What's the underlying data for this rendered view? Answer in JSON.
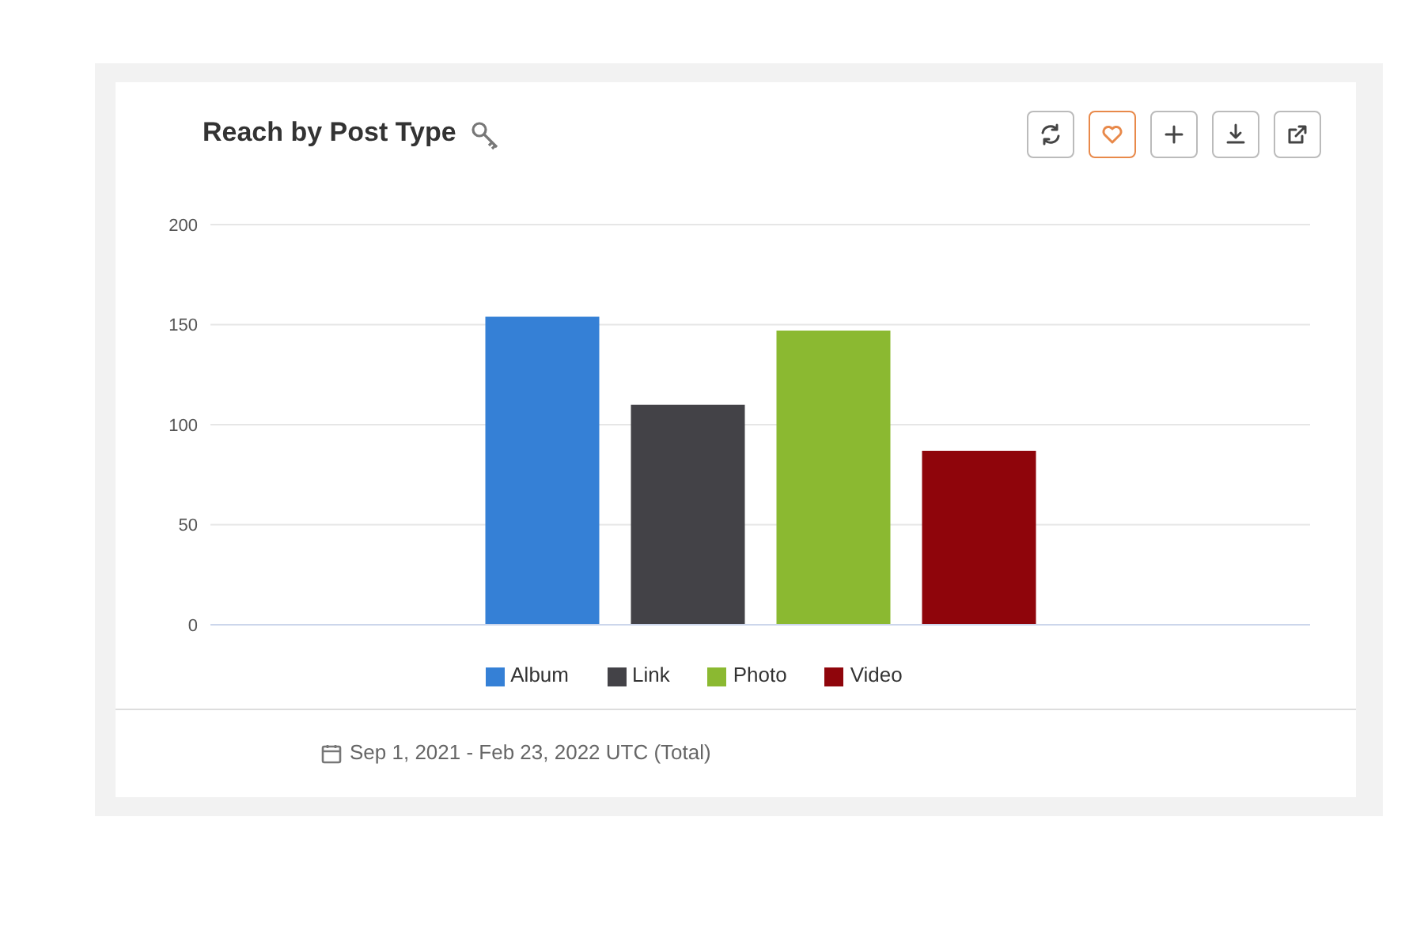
{
  "chart_data": {
    "type": "bar",
    "title": "Reach by Post Type",
    "categories": [
      null
    ],
    "series": [
      {
        "name": "Album",
        "color": "#3580d6",
        "values": [
          154
        ]
      },
      {
        "name": "Link",
        "color": "#434247",
        "values": [
          110
        ]
      },
      {
        "name": "Photo",
        "color": "#8bb931",
        "values": [
          147
        ]
      },
      {
        "name": "Video",
        "color": "#8f050b",
        "values": [
          87
        ]
      }
    ],
    "ylim": [
      0,
      200
    ],
    "yticks": [
      0,
      50,
      100,
      150,
      200
    ],
    "grid": "y",
    "legend": "bottom",
    "annotations": [
      "Sep 1, 2021 - Feb 23, 2022 UTC (Total)"
    ]
  }
}
